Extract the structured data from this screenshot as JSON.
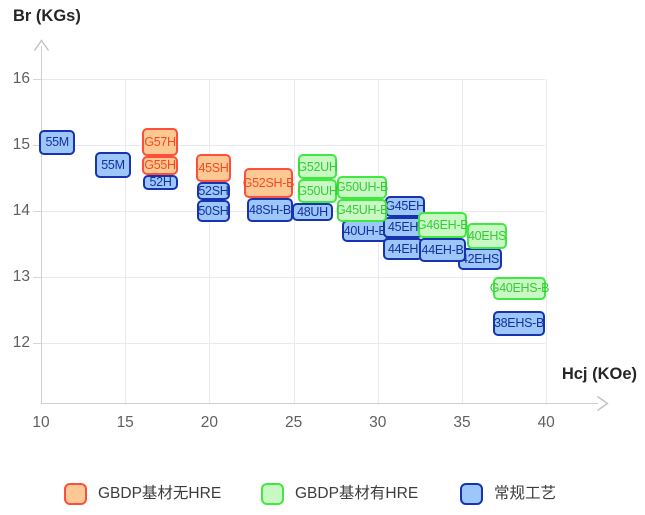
{
  "chart_data": {
    "type": "box-range-grade-map",
    "title": "",
    "x_axis": {
      "label": "Hcj (KOe)",
      "ticks": [
        10,
        15,
        20,
        25,
        30,
        35,
        40
      ]
    },
    "y_axis": {
      "label": "Br (KGs)",
      "ticks": [
        16,
        15,
        14,
        13,
        12
      ]
    },
    "grid": true,
    "legend_position": "bottom",
    "series": [
      {
        "id": "blue",
        "name": "常规工艺",
        "fill": "#9cc7f8",
        "border": "#1733b0",
        "text_color": "#15309e",
        "boxes": [
          {
            "label": "55M",
            "hcj": [
              9.9,
              12.02
            ],
            "br": [
              14.85,
              15.23
            ]
          },
          {
            "label": "55M",
            "hcj": [
              13.21,
              15.34
            ],
            "br": [
              14.5,
              14.89
            ]
          },
          {
            "label": "52H",
            "hcj": [
              16.06,
              18.14
            ],
            "br": [
              14.32,
              14.55
            ]
          },
          {
            "label": "52SH",
            "hcj": [
              19.26,
              21.22
            ],
            "br": [
              14.17,
              14.44
            ]
          },
          {
            "label": "50SH",
            "hcj": [
              19.26,
              21.22
            ],
            "br": [
              13.83,
              14.17
            ]
          },
          {
            "label": "48SH-B",
            "hcj": [
              22.23,
              24.96
            ],
            "br": [
              13.83,
              14.2
            ]
          },
          {
            "label": "48UH",
            "hcj": [
              24.9,
              27.34
            ],
            "br": [
              13.85,
              14.12
            ]
          },
          {
            "label": "40UH-B",
            "hcj": [
              27.88,
              30.61
            ],
            "br": [
              13.53,
              13.86
            ]
          },
          {
            "label": "G45EH",
            "hcj": [
              30.43,
              32.81
            ],
            "br": [
              13.91,
              14.23
            ]
          },
          {
            "label": "45EH",
            "hcj": [
              30.31,
              32.69
            ],
            "br": [
              13.59,
              13.91
            ]
          },
          {
            "label": "44EH",
            "hcj": [
              30.31,
              32.69
            ],
            "br": [
              13.26,
              13.59
            ]
          },
          {
            "label": "42EHS",
            "hcj": [
              34.76,
              37.38
            ],
            "br": [
              13.11,
              13.44
            ]
          },
          {
            "label": "44EH-B",
            "hcj": [
              32.45,
              35.24
            ],
            "br": [
              13.23,
              13.59
            ]
          },
          {
            "label": "38EHS-B",
            "hcj": [
              36.84,
              39.93
            ],
            "br": [
              12.11,
              12.48
            ]
          }
        ]
      },
      {
        "id": "green",
        "name": "GBDP基材有HRE",
        "fill": "#c9f8c5",
        "border": "#3fe93f",
        "text_color": "#35cd35",
        "boxes": [
          {
            "label": "G52UH",
            "hcj": [
              25.26,
              27.58
            ],
            "br": [
              14.48,
              14.86
            ]
          },
          {
            "label": "G50UH",
            "hcj": [
              25.26,
              27.58
            ],
            "br": [
              14.12,
              14.48
            ]
          },
          {
            "label": "G50UH-B",
            "hcj": [
              27.58,
              30.55
            ],
            "br": [
              14.18,
              14.53
            ]
          },
          {
            "label": "G45UH-B",
            "hcj": [
              27.58,
              30.55
            ],
            "br": [
              13.83,
              14.18
            ]
          },
          {
            "label": "G46EH-B",
            "hcj": [
              32.39,
              35.3
            ],
            "br": [
              13.59,
              13.98
            ]
          },
          {
            "label": "40EHS",
            "hcj": [
              35.3,
              37.68
            ],
            "br": [
              13.42,
              13.82
            ]
          },
          {
            "label": "G40EHS-B",
            "hcj": [
              36.84,
              39.99
            ],
            "br": [
              12.65,
              13.0
            ]
          }
        ]
      },
      {
        "id": "orange",
        "name": "GBDP基材无HRE",
        "fill": "#fcc995",
        "border": "#fd4f3c",
        "text_color": "#f6491f",
        "boxes": [
          {
            "label": "G57H",
            "hcj": [
              16.0,
              18.14
            ],
            "br": [
              14.83,
              15.26
            ]
          },
          {
            "label": "G55H",
            "hcj": [
              16.0,
              18.14
            ],
            "br": [
              14.55,
              14.83
            ]
          },
          {
            "label": "45SH",
            "hcj": [
              19.21,
              21.28
            ],
            "br": [
              14.44,
              14.86
            ]
          },
          {
            "label": "G52SH-B",
            "hcj": [
              22.05,
              24.96
            ],
            "br": [
              14.2,
              14.65
            ]
          }
        ]
      }
    ],
    "legend": [
      {
        "series": "orange",
        "label": "GBDP基材无HRE"
      },
      {
        "series": "green",
        "label": "GBDP基材有HRE"
      },
      {
        "series": "blue",
        "label": "常规工艺"
      }
    ]
  }
}
